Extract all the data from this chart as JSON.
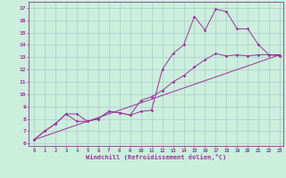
{
  "xlabel": "Windchill (Refroidissement éolien,°C)",
  "bg_color": "#cceedd",
  "grid_color": "#aacccc",
  "line_color": "#993399",
  "ylim": [
    5.8,
    17.5
  ],
  "xlim": [
    -0.5,
    23.3
  ],
  "yticks": [
    6,
    7,
    8,
    9,
    10,
    11,
    12,
    13,
    14,
    15,
    16,
    17
  ],
  "xticks": [
    0,
    1,
    2,
    3,
    4,
    5,
    6,
    7,
    8,
    9,
    10,
    11,
    12,
    13,
    14,
    15,
    16,
    17,
    18,
    19,
    20,
    21,
    22,
    23
  ],
  "line1_x": [
    0,
    1,
    2,
    3,
    4,
    5,
    6,
    7,
    8,
    9,
    10,
    11,
    12,
    13,
    14,
    15,
    16,
    17,
    18,
    19,
    20,
    21,
    22,
    23
  ],
  "line1_y": [
    6.3,
    7.0,
    7.6,
    8.4,
    8.4,
    7.8,
    8.0,
    8.6,
    8.5,
    8.3,
    8.6,
    8.7,
    12.0,
    13.3,
    14.0,
    16.3,
    15.2,
    16.9,
    16.7,
    15.3,
    15.3,
    14.0,
    13.2,
    13.1
  ],
  "line2_x": [
    0,
    1,
    2,
    3,
    4,
    5,
    6,
    7,
    8,
    9,
    10,
    11,
    12,
    13,
    14,
    15,
    16,
    17,
    18,
    19,
    20,
    21,
    22,
    23
  ],
  "line2_y": [
    6.3,
    7.0,
    7.6,
    8.4,
    7.8,
    7.8,
    8.0,
    8.6,
    8.5,
    8.3,
    9.5,
    9.8,
    10.3,
    11.0,
    11.5,
    12.2,
    12.8,
    13.3,
    13.1,
    13.2,
    13.1,
    13.2,
    13.2,
    13.2
  ],
  "line3_x": [
    0,
    23
  ],
  "line3_y": [
    6.3,
    13.2
  ]
}
